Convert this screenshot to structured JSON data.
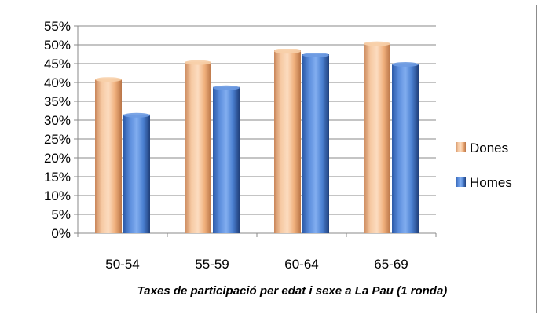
{
  "chart_data": {
    "type": "bar",
    "title": "",
    "xlabel": "Taxes de participació per edat i sexe  a La Pau  (1 ronda)",
    "ylabel": "",
    "categories": [
      "50-54",
      "55-59",
      "60-64",
      "65-69"
    ],
    "series": [
      {
        "name": "Dones",
        "values": [
          41,
          45.5,
          48.5,
          50.5
        ],
        "color": "#f2b27e"
      },
      {
        "name": "Homes",
        "values": [
          31.5,
          38.8,
          47.5,
          45
        ],
        "color": "#4f7fcf"
      }
    ],
    "ylim": [
      0,
      55
    ],
    "yticks": [
      "0%",
      "5%",
      "10%",
      "15%",
      "20%",
      "25%",
      "30%",
      "35%",
      "40%",
      "45%",
      "50%",
      "55%"
    ],
    "grid": true,
    "legend_position": "right"
  }
}
